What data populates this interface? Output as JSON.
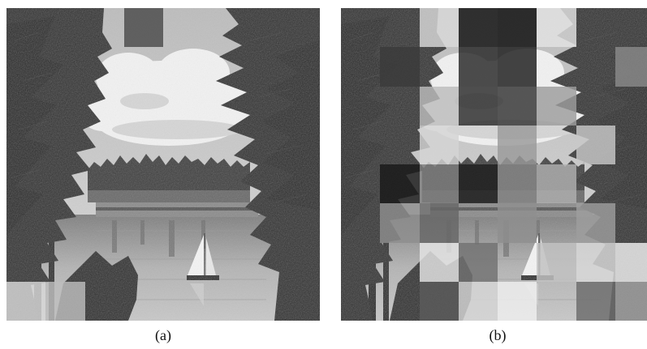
{
  "panels": [
    {
      "id": "a",
      "caption": "(a)"
    },
    {
      "id": "b",
      "caption": "(b)"
    }
  ],
  "description_free": true,
  "colors": {
    "background": "#ffffff",
    "sky": "#cfcfcf",
    "trees": "#2e2e2e",
    "water": "#a9a9a9"
  },
  "tampered_blocks": {
    "grid": 8,
    "a": [
      {
        "r": 0,
        "c": 3,
        "shade": "#4a4a4a"
      },
      {
        "r": 7,
        "c": 0,
        "shade": "#d8d8d8"
      },
      {
        "r": 7,
        "c": 1,
        "shade": "#bdbdbd"
      }
    ],
    "b": [
      {
        "r": 0,
        "c": 3,
        "shade": "#101010"
      },
      {
        "r": 0,
        "c": 4,
        "shade": "#0b0b0b"
      },
      {
        "r": 0,
        "c": 2,
        "shade": "#d9d9d9"
      },
      {
        "r": 0,
        "c": 5,
        "shade": "#e3e3e3"
      },
      {
        "r": 1,
        "c": 3,
        "shade": "#272727"
      },
      {
        "r": 1,
        "c": 4,
        "shade": "#1c1c1c"
      },
      {
        "r": 1,
        "c": 1,
        "shade": "#3a3a3a"
      },
      {
        "r": 1,
        "c": 7,
        "shade": "#8a8a8a"
      },
      {
        "r": 2,
        "c": 3,
        "shade": "#2b2b2b"
      },
      {
        "r": 2,
        "c": 4,
        "shade": "#333333"
      },
      {
        "r": 2,
        "c": 5,
        "shade": "#9c9c9c"
      },
      {
        "r": 2,
        "c": 2,
        "shade": "#bcbcbc"
      },
      {
        "r": 3,
        "c": 4,
        "shade": "#9a9a9a"
      },
      {
        "r": 3,
        "c": 6,
        "shade": "#c8c8c8"
      },
      {
        "r": 3,
        "c": 2,
        "shade": "#d4d4d4"
      },
      {
        "r": 4,
        "c": 1,
        "shade": "#191919"
      },
      {
        "r": 4,
        "c": 2,
        "shade": "#7d7d7d"
      },
      {
        "r": 4,
        "c": 3,
        "shade": "#1f1f1f"
      },
      {
        "r": 4,
        "c": 4,
        "shade": "#888888"
      },
      {
        "r": 4,
        "c": 5,
        "shade": "#b0b0b0"
      },
      {
        "r": 5,
        "c": 1,
        "shade": "#8e8e8e"
      },
      {
        "r": 5,
        "c": 2,
        "shade": "#666666"
      },
      {
        "r": 5,
        "c": 4,
        "shade": "#8f8f8f"
      },
      {
        "r": 5,
        "c": 6,
        "shade": "#9d9d9d"
      },
      {
        "r": 6,
        "c": 2,
        "shade": "#e5e5e5"
      },
      {
        "r": 6,
        "c": 3,
        "shade": "#727272"
      },
      {
        "r": 6,
        "c": 5,
        "shade": "#c2c2c2"
      },
      {
        "r": 6,
        "c": 6,
        "shade": "#dadada"
      },
      {
        "r": 6,
        "c": 7,
        "shade": "#f0f0f0"
      },
      {
        "r": 7,
        "c": 2,
        "shade": "#5c5c5c"
      },
      {
        "r": 7,
        "c": 3,
        "shade": "#d6d6d6"
      },
      {
        "r": 7,
        "c": 4,
        "shade": "#efefef"
      },
      {
        "r": 7,
        "c": 6,
        "shade": "#6b6b6b"
      },
      {
        "r": 7,
        "c": 7,
        "shade": "#a4a4a4"
      }
    ]
  }
}
